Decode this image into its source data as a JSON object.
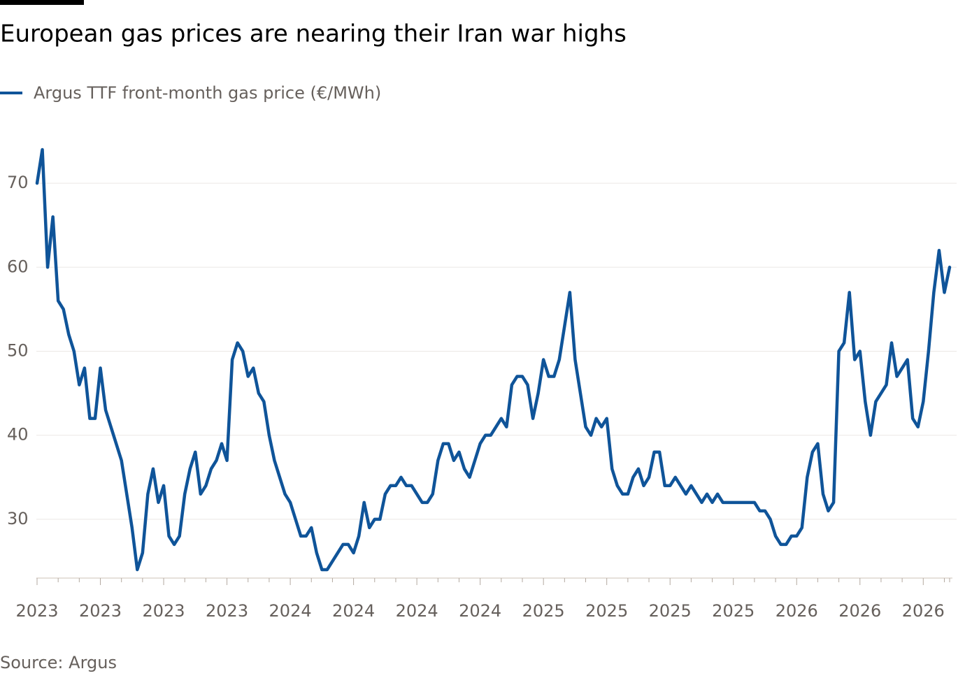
{
  "chart_data": {
    "type": "line",
    "title": "European gas prices are nearing their Iran war highs",
    "source": "Source: Argus",
    "categories": [
      "2023",
      null,
      null,
      null,
      null,
      null,
      null,
      null,
      null,
      null,
      null,
      null,
      "2023",
      null,
      null,
      null,
      null,
      null,
      null,
      null,
      null,
      null,
      null,
      null,
      "2023",
      null,
      null,
      null,
      null,
      null,
      null,
      null,
      null,
      null,
      null,
      null,
      "2023",
      null,
      null,
      null,
      null,
      null,
      null,
      null,
      null,
      null,
      null,
      null,
      "2024",
      null,
      null,
      null,
      null,
      null,
      null,
      null,
      null,
      null,
      null,
      null,
      "2024",
      null,
      null,
      null,
      null,
      null,
      null,
      null,
      null,
      null,
      null,
      null,
      "2024",
      null,
      null,
      null,
      null,
      null,
      null,
      null,
      null,
      null,
      null,
      null,
      "2024",
      null,
      null,
      null,
      null,
      null,
      null,
      null,
      null,
      null,
      null,
      null,
      "2025",
      null,
      null,
      null,
      null,
      null,
      null,
      null,
      null,
      null,
      null,
      null,
      "2025",
      null,
      null,
      null,
      null,
      null,
      null,
      null,
      null,
      null,
      null,
      null,
      "2025",
      null,
      null,
      null,
      null,
      null,
      null,
      null,
      null,
      null,
      null,
      null,
      "2025",
      null,
      null,
      null,
      null,
      null,
      null,
      null,
      null,
      null,
      null,
      null,
      "2026",
      null,
      null,
      null,
      null,
      null,
      null,
      null,
      null,
      null,
      null,
      null,
      "2026",
      null,
      null,
      null,
      null,
      null,
      null,
      null,
      null,
      null,
      null,
      null,
      "2026",
      null,
      null,
      null,
      null,
      null
    ],
    "series": [
      {
        "name": "Argus TTF front-month gas price (€/MWh)",
        "color": "#0f5499",
        "values": [
          70,
          74,
          60,
          66,
          56,
          55,
          52,
          50,
          46,
          48,
          42,
          42,
          48,
          43,
          41,
          39,
          37,
          33,
          29,
          24,
          26,
          33,
          36,
          32,
          34,
          28,
          27,
          28,
          33,
          36,
          38,
          33,
          34,
          36,
          37,
          39,
          37,
          49,
          51,
          50,
          47,
          48,
          45,
          44,
          40,
          37,
          35,
          33,
          32,
          30,
          28,
          28,
          29,
          26,
          24,
          24,
          25,
          26,
          27,
          27,
          26,
          28,
          32,
          29,
          30,
          30,
          33,
          34,
          34,
          35,
          34,
          34,
          33,
          32,
          32,
          33,
          37,
          39,
          39,
          37,
          38,
          36,
          35,
          37,
          39,
          40,
          40,
          41,
          42,
          41,
          46,
          47,
          47,
          46,
          42,
          45,
          49,
          47,
          47,
          49,
          53,
          57,
          49,
          45,
          41,
          40,
          42,
          41,
          42,
          36,
          34,
          33,
          33,
          35,
          36,
          34,
          35,
          38,
          38,
          34,
          34,
          35,
          34,
          33,
          34,
          33,
          32,
          33,
          32,
          33,
          32,
          32,
          32,
          32,
          32,
          32,
          32,
          31,
          31,
          30,
          28,
          27,
          27,
          28,
          28,
          29,
          35,
          38,
          39,
          33,
          31,
          32,
          50,
          51,
          57,
          49,
          50,
          44,
          40,
          44,
          45,
          46,
          51,
          47,
          48,
          49,
          42,
          41,
          44,
          50,
          57,
          62,
          57,
          60
        ]
      }
    ],
    "ylim": [
      23,
      76
    ],
    "yticks": [
      30,
      40,
      50,
      60,
      70
    ],
    "grid": true
  }
}
